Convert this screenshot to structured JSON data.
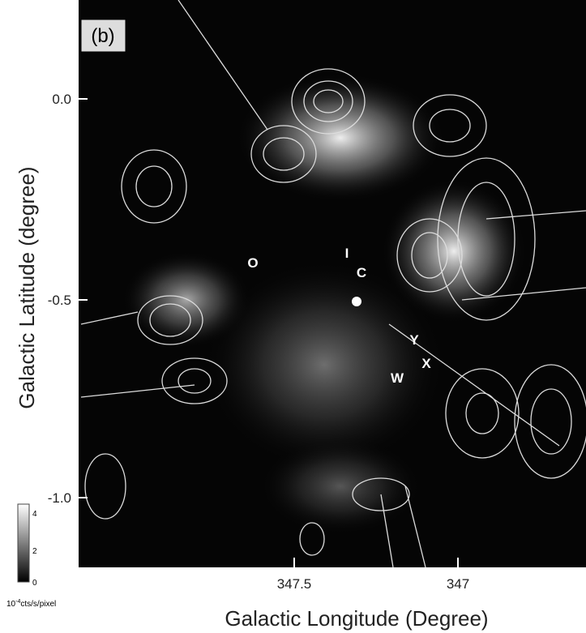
{
  "figure": {
    "panel_label": "(b)",
    "x_axis_title": "Galactic Longitude (Degree)",
    "y_axis_title": "Galactic Latitude (degree)",
    "x_tick_labels": [
      "347.5",
      "347"
    ],
    "y_tick_labels": [
      "0.0",
      "-0.5",
      "-1.0"
    ],
    "region_labels": [
      "O",
      "I",
      "C",
      "Y",
      "X",
      "W"
    ],
    "colorbar": {
      "tick_labels": [
        "4",
        "2",
        "0"
      ],
      "unit_base": "10",
      "unit_exponent": "-4",
      "unit_rest": "cts/s/pixel"
    }
  }
}
